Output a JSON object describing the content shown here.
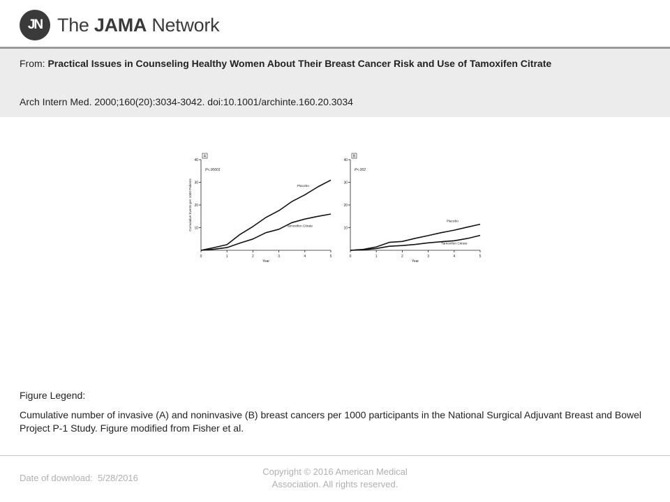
{
  "brand": {
    "badge": "JN",
    "name_prefix": "The ",
    "name_bold": "JAMA",
    "name_suffix": " Network"
  },
  "header": {
    "from_label": "From: ",
    "article_title": "Practical Issues in Counseling Healthy Women About Their Breast Cancer Risk and Use of Tamoxifen Citrate",
    "citation": "Arch Intern Med. 2000;160(20):3034-3042. doi:10.1001/archinte.160.20.3034"
  },
  "chart_data": [
    {
      "type": "line",
      "panel_label": "A",
      "annotation": "P<.00001",
      "ylabel": "Cumulative Events per 1000 Patients",
      "xlabel": "Year",
      "xlim": [
        0,
        5
      ],
      "ylim": [
        0,
        40
      ],
      "xticks": [
        0,
        1,
        2,
        3,
        4,
        5
      ],
      "yticks": [
        10,
        20,
        30,
        40
      ],
      "series": [
        {
          "name": "Placebo",
          "x": [
            0,
            0.5,
            1,
            1.5,
            2,
            2.5,
            3,
            3.5,
            4,
            4.5,
            5
          ],
          "y": [
            0,
            1.2,
            2.5,
            7,
            10.5,
            14.5,
            17.5,
            21.5,
            24.5,
            28,
            31
          ]
        },
        {
          "name": "Tamoxifen Citrate",
          "x": [
            0,
            0.5,
            1,
            1.5,
            2,
            2.5,
            3,
            3.5,
            4,
            4.5,
            5
          ],
          "y": [
            0,
            0.5,
            1.2,
            3.2,
            5,
            7.8,
            9.3,
            12.2,
            13.8,
            15,
            16
          ]
        }
      ]
    },
    {
      "type": "line",
      "panel_label": "B",
      "annotation": "P<.002",
      "ylabel": "",
      "xlabel": "Year",
      "xlim": [
        0,
        5
      ],
      "ylim": [
        0,
        40
      ],
      "xticks": [
        0,
        1,
        2,
        3,
        4,
        5
      ],
      "yticks": [
        10,
        20,
        30,
        40
      ],
      "series": [
        {
          "name": "Placebo",
          "x": [
            0,
            0.5,
            1,
            1.5,
            2,
            2.5,
            3,
            3.5,
            4,
            4.5,
            5
          ],
          "y": [
            0,
            0.4,
            1.5,
            3.5,
            3.9,
            5.3,
            6.5,
            7.8,
            8.9,
            10.2,
            11.5
          ]
        },
        {
          "name": "Tamoxifen Citrate",
          "x": [
            0,
            0.5,
            1,
            1.5,
            2,
            2.5,
            3,
            3.5,
            4,
            4.5,
            5
          ],
          "y": [
            0,
            0.2,
            0.8,
            1.8,
            2.1,
            2.6,
            3.3,
            3.8,
            4.2,
            5.2,
            6.6
          ]
        }
      ]
    }
  ],
  "legend": {
    "heading": "Figure Legend:",
    "text": "Cumulative number of invasive (A) and noninvasive (B) breast cancers per 1000 participants in the National Surgical Adjuvant Breast and Bowel Project P-1 Study. Figure modified from Fisher et al."
  },
  "footer": {
    "date_label": "Date of download:",
    "date_value": "5/28/2016",
    "copyright": "Copyright © 2016 American Medical Association. All rights reserved."
  }
}
